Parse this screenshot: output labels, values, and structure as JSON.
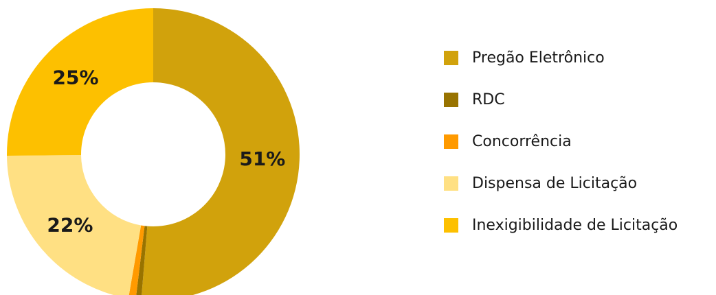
{
  "chart_data": {
    "type": "pie",
    "donut": true,
    "series": [
      {
        "name": "Pregão Eletrônico",
        "value": 51,
        "color": "#D1A20C",
        "label": "51%"
      },
      {
        "name": "RDC",
        "value": 0.6,
        "color": "#987300",
        "label": ""
      },
      {
        "name": "Concorrência",
        "value": 0.8,
        "color": "#FF9A00",
        "label": ""
      },
      {
        "name": "Dispensa de Licitação",
        "value": 22,
        "color": "#FFE083",
        "label": "22%"
      },
      {
        "name": "Inexigibilidade de Licitação",
        "value": 25,
        "color": "#FDC000",
        "label": "25%"
      }
    ],
    "legend_position": "right"
  }
}
